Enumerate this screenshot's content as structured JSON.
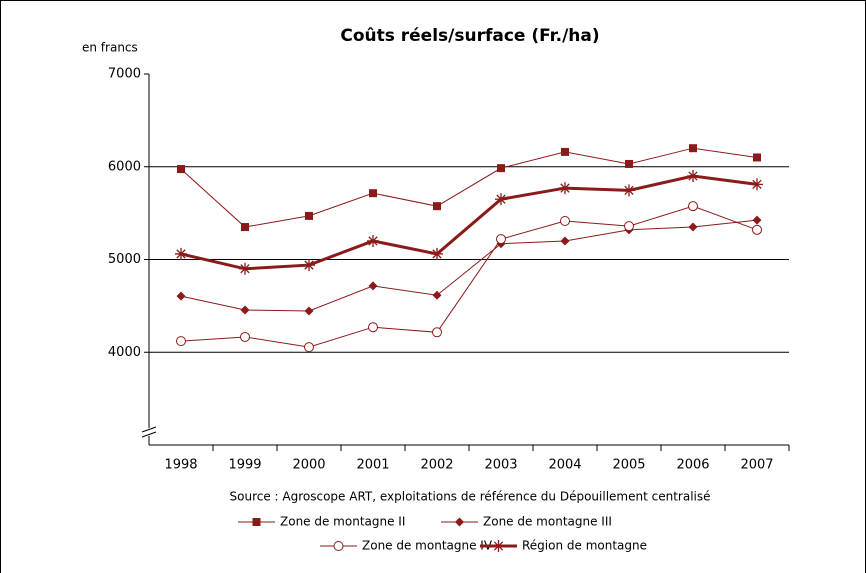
{
  "chart_data": {
    "type": "line",
    "title": "Coûts réels/surface (Fr./ha)",
    "y_axis_label": "en francs",
    "source": "Source : Agroscope ART, exploitations de référence du Dépouillement centralisé",
    "categories": [
      "1998",
      "1999",
      "2000",
      "2001",
      "2002",
      "2003",
      "2004",
      "2005",
      "2006",
      "2007"
    ],
    "ylim": [
      3000,
      7000
    ],
    "yticks": [
      4000,
      5000,
      6000,
      7000
    ],
    "grid": true,
    "series": [
      {
        "name": "Zone de montagne II",
        "color": "#8b1a1a",
        "marker": "square",
        "line_width": 1,
        "values": [
          5975,
          5350,
          5470,
          5715,
          5575,
          5985,
          6160,
          6030,
          6200,
          6100
        ]
      },
      {
        "name": "Zone de montagne III",
        "color": "#8b1a1a",
        "marker": "diamond",
        "line_width": 1,
        "values": [
          4605,
          4455,
          4445,
          4715,
          4615,
          5170,
          5200,
          5320,
          5350,
          5425
        ]
      },
      {
        "name": "Zone de montagne IV",
        "color": "#8b1a1a",
        "marker": "circle",
        "line_width": 1,
        "values": [
          4120,
          4165,
          4055,
          4270,
          4215,
          5220,
          5415,
          5360,
          5575,
          5320
        ]
      },
      {
        "name": "Région de montagne",
        "color": "#8b1a1a",
        "marker": "asterisk",
        "line_width": 3,
        "values": [
          5060,
          4900,
          4940,
          5200,
          5060,
          5650,
          5770,
          5745,
          5900,
          5810
        ]
      }
    ]
  }
}
